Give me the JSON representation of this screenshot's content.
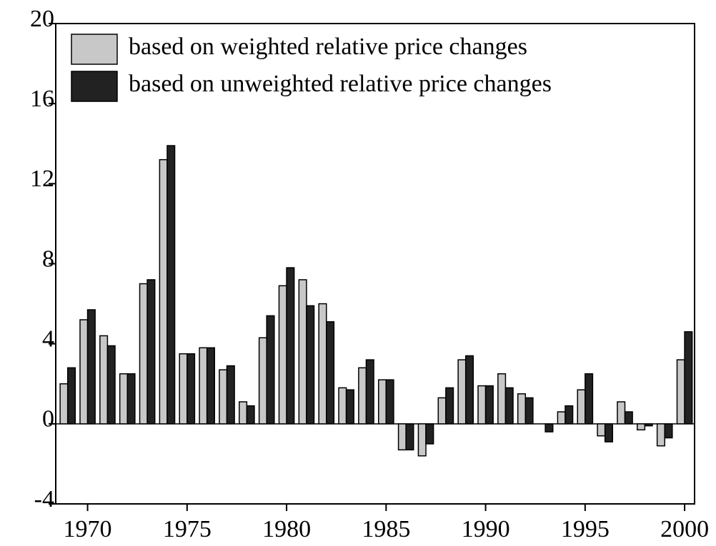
{
  "chart_data": {
    "type": "bar",
    "legend": "upper left",
    "x": [
      1969,
      1970,
      1971,
      1972,
      1973,
      1974,
      1975,
      1976,
      1977,
      1978,
      1979,
      1980,
      1981,
      1982,
      1983,
      1984,
      1985,
      1986,
      1987,
      1988,
      1989,
      1990,
      1991,
      1992,
      1993,
      1994,
      1995,
      1996,
      1997,
      1998,
      1999,
      2000
    ],
    "series": [
      {
        "name": "based on weighted relative price changes",
        "color": "#c8c8c8",
        "values": [
          2.0,
          5.2,
          4.4,
          2.5,
          7.0,
          13.2,
          3.5,
          3.8,
          2.7,
          1.1,
          4.3,
          6.9,
          7.2,
          6.0,
          1.8,
          2.8,
          2.2,
          -1.3,
          -1.6,
          1.3,
          3.2,
          1.9,
          2.5,
          1.5,
          0.0,
          0.6,
          1.7,
          -0.6,
          1.1,
          -0.3,
          -1.1,
          3.2
        ]
      },
      {
        "name": "based on unweighted relative price changes",
        "color": "#222222",
        "values": [
          2.8,
          5.7,
          3.9,
          2.5,
          7.2,
          13.9,
          3.5,
          3.8,
          2.9,
          0.9,
          5.4,
          7.8,
          5.9,
          5.1,
          1.7,
          3.2,
          2.2,
          -1.3,
          -1.0,
          1.8,
          3.4,
          1.9,
          1.8,
          1.3,
          -0.4,
          0.9,
          2.5,
          -0.9,
          0.6,
          -0.1,
          -0.7,
          4.6
        ]
      }
    ],
    "xlim": [
      1968.4,
      2000.5
    ],
    "xticks": [
      1970,
      1975,
      1980,
      1985,
      1990,
      1995,
      2000
    ],
    "ylim": [
      -4,
      20
    ],
    "yticks": [
      -4,
      0,
      4,
      8,
      12,
      16,
      20
    ]
  }
}
